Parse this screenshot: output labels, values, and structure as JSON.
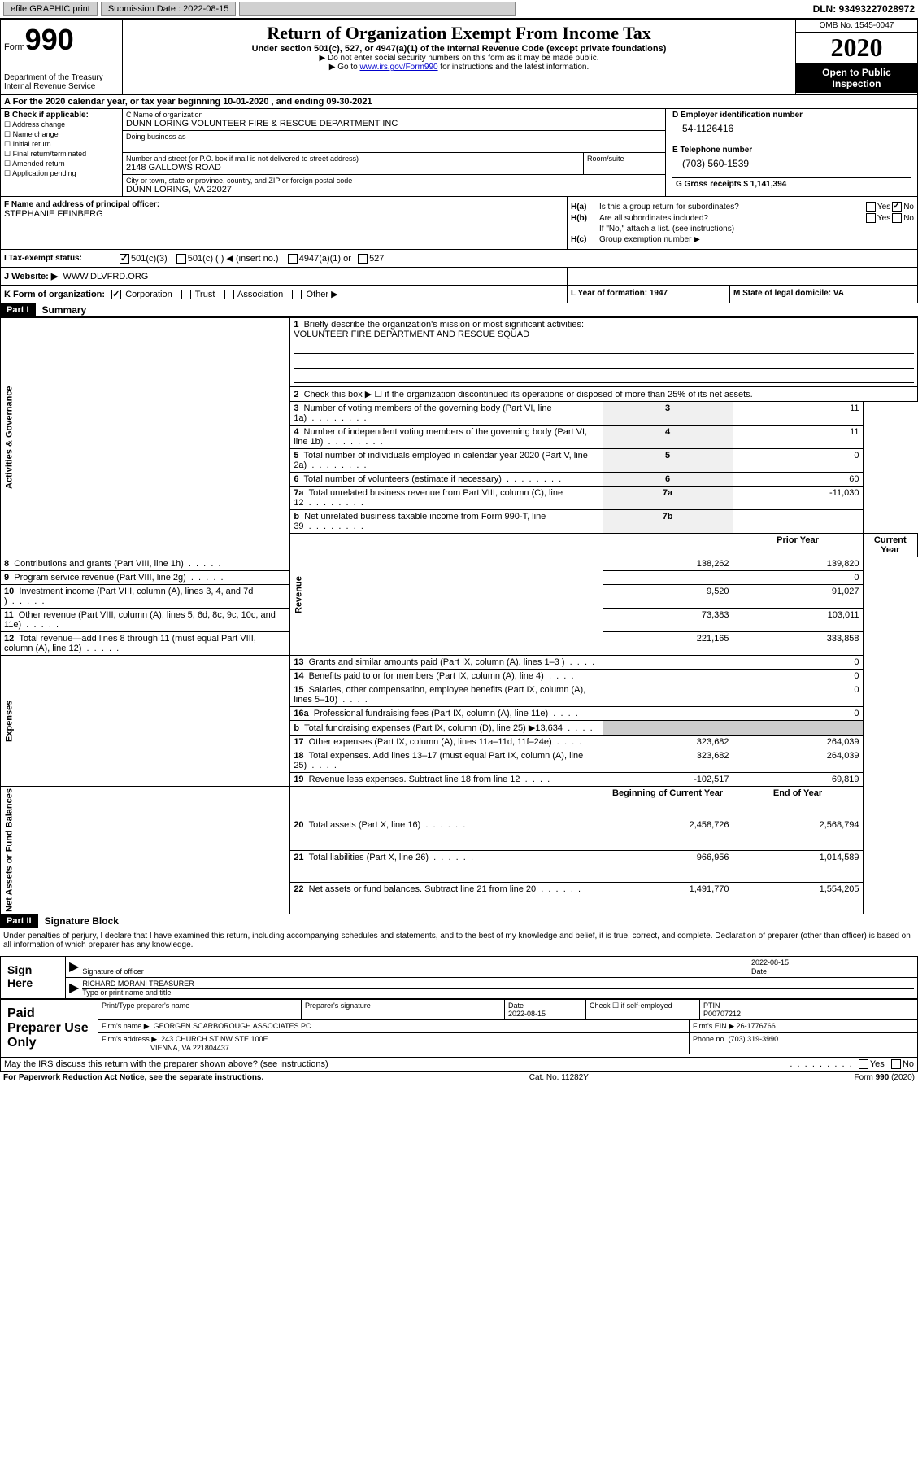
{
  "topbar": {
    "efile": "efile GRAPHIC print",
    "subdate_label": "Submission Date : 2022-08-15",
    "dln": "DLN: 93493227028972"
  },
  "header": {
    "form_label": "Form",
    "form_num": "990",
    "dept": "Department of the Treasury",
    "irs": "Internal Revenue Service",
    "title": "Return of Organization Exempt From Income Tax",
    "subtitle": "Under section 501(c), 527, or 4947(a)(1) of the Internal Revenue Code (except private foundations)",
    "note1": "▶ Do not enter social security numbers on this form as it may be made public.",
    "note2_pre": "▶ Go to ",
    "note2_link": "www.irs.gov/Form990",
    "note2_post": " for instructions and the latest information.",
    "omb": "OMB No. 1545-0047",
    "year": "2020",
    "inspect": "Open to Public Inspection"
  },
  "period": "A For the 2020 calendar year, or tax year beginning 10-01-2020   , and ending 09-30-2021",
  "section_b": {
    "label": "B Check if applicable:",
    "opts": [
      "Address change",
      "Name change",
      "Initial return",
      "Final return/terminated",
      "Amended return",
      "Application pending"
    ]
  },
  "section_c": {
    "name_label": "C Name of organization",
    "name": "DUNN LORING VOLUNTEER FIRE & RESCUE DEPARTMENT INC",
    "dba_label": "Doing business as",
    "addr_label": "Number and street (or P.O. box if mail is not delivered to street address)",
    "addr": "2148 GALLOWS ROAD",
    "room_label": "Room/suite",
    "city_label": "City or town, state or province, country, and ZIP or foreign postal code",
    "city": "DUNN LORING, VA  22027"
  },
  "section_d": {
    "label": "D Employer identification number",
    "val": "54-1126416"
  },
  "section_e": {
    "label": "E Telephone number",
    "val": "(703) 560-1539"
  },
  "section_g": {
    "label": "G Gross receipts $ 1,141,394"
  },
  "section_f": {
    "label": "F  Name and address of principal officer:",
    "val": "STEPHANIE FEINBERG"
  },
  "section_h": {
    "ha_label": "H(a)",
    "ha_text": "Is this a group return for subordinates?",
    "hb_label": "H(b)",
    "hb_text": "Are all subordinates included?",
    "hb_note": "If \"No,\" attach a list. (see instructions)",
    "hc_label": "H(c)",
    "hc_text": "Group exemption number ▶",
    "yes": "Yes",
    "no": "No"
  },
  "section_i": {
    "label": "I   Tax-exempt status:",
    "opt1": "501(c)(3)",
    "opt2": "501(c) (  ) ◀ (insert no.)",
    "opt3": "4947(a)(1) or",
    "opt4": "527"
  },
  "section_j": {
    "label": "J   Website: ▶",
    "val": "WWW.DLVFRD.ORG"
  },
  "section_k": {
    "label": "K Form of organization:",
    "opts": [
      "Corporation",
      "Trust",
      "Association",
      "Other ▶"
    ]
  },
  "section_l": {
    "label": "L Year of formation: 1947"
  },
  "section_m": {
    "label": "M State of legal domicile: VA"
  },
  "part1": {
    "header": "Part I",
    "title": "Summary",
    "line1_label": "1",
    "line1_text": "Briefly describe the organization's mission or most significant activities:",
    "line1_val": "VOLUNTEER FIRE DEPARTMENT AND RESCUE SQUAD",
    "line2_label": "2",
    "line2_text": "Check this box ▶ ☐  if the organization discontinued its operations or disposed of more than 25% of its net assets.",
    "vert_gov": "Activities & Governance",
    "vert_rev": "Revenue",
    "vert_exp": "Expenses",
    "vert_net": "Net Assets or Fund Balances",
    "gov_rows": [
      {
        "n": "3",
        "t": "Number of voting members of the governing body (Part VI, line 1a)",
        "box": "3",
        "v": "11"
      },
      {
        "n": "4",
        "t": "Number of independent voting members of the governing body (Part VI, line 1b)",
        "box": "4",
        "v": "11"
      },
      {
        "n": "5",
        "t": "Total number of individuals employed in calendar year 2020 (Part V, line 2a)",
        "box": "5",
        "v": "0"
      },
      {
        "n": "6",
        "t": "Total number of volunteers (estimate if necessary)",
        "box": "6",
        "v": "60"
      },
      {
        "n": "7a",
        "t": "Total unrelated business revenue from Part VIII, column (C), line 12",
        "box": "7a",
        "v": "-11,030"
      },
      {
        "n": "b",
        "t": "Net unrelated business taxable income from Form 990-T, line 39",
        "box": "7b",
        "v": ""
      }
    ],
    "year_cols": {
      "prior": "Prior Year",
      "current": "Current Year"
    },
    "rev_rows": [
      {
        "n": "8",
        "t": "Contributions and grants (Part VIII, line 1h)",
        "p": "138,262",
        "c": "139,820"
      },
      {
        "n": "9",
        "t": "Program service revenue (Part VIII, line 2g)",
        "p": "",
        "c": "0"
      },
      {
        "n": "10",
        "t": "Investment income (Part VIII, column (A), lines 3, 4, and 7d )",
        "p": "9,520",
        "c": "91,027"
      },
      {
        "n": "11",
        "t": "Other revenue (Part VIII, column (A), lines 5, 6d, 8c, 9c, 10c, and 11e)",
        "p": "73,383",
        "c": "103,011"
      },
      {
        "n": "12",
        "t": "Total revenue—add lines 8 through 11 (must equal Part VIII, column (A), line 12)",
        "p": "221,165",
        "c": "333,858"
      }
    ],
    "exp_rows": [
      {
        "n": "13",
        "t": "Grants and similar amounts paid (Part IX, column (A), lines 1–3 )",
        "p": "",
        "c": "0"
      },
      {
        "n": "14",
        "t": "Benefits paid to or for members (Part IX, column (A), line 4)",
        "p": "",
        "c": "0"
      },
      {
        "n": "15",
        "t": "Salaries, other compensation, employee benefits (Part IX, column (A), lines 5–10)",
        "p": "",
        "c": "0"
      },
      {
        "n": "16a",
        "t": "Professional fundraising fees (Part IX, column (A), line 11e)",
        "p": "",
        "c": "0"
      },
      {
        "n": "b",
        "t": "Total fundraising expenses (Part IX, column (D), line 25) ▶13,634",
        "p": "__SHADE__",
        "c": "__SHADE__"
      },
      {
        "n": "17",
        "t": "Other expenses (Part IX, column (A), lines 11a–11d, 11f–24e)",
        "p": "323,682",
        "c": "264,039"
      },
      {
        "n": "18",
        "t": "Total expenses. Add lines 13–17 (must equal Part IX, column (A), line 25)",
        "p": "323,682",
        "c": "264,039"
      },
      {
        "n": "19",
        "t": "Revenue less expenses. Subtract line 18 from line 12",
        "p": "-102,517",
        "c": "69,819"
      }
    ],
    "net_cols": {
      "beg": "Beginning of Current Year",
      "end": "End of Year"
    },
    "net_rows": [
      {
        "n": "20",
        "t": "Total assets (Part X, line 16)",
        "p": "2,458,726",
        "c": "2,568,794"
      },
      {
        "n": "21",
        "t": "Total liabilities (Part X, line 26)",
        "p": "966,956",
        "c": "1,014,589"
      },
      {
        "n": "22",
        "t": "Net assets or fund balances. Subtract line 21 from line 20",
        "p": "1,491,770",
        "c": "1,554,205"
      }
    ]
  },
  "part2": {
    "header": "Part II",
    "title": "Signature Block",
    "intro": "Under penalties of perjury, I declare that I have examined this return, including accompanying schedules and statements, and to the best of my knowledge and belief, it is true, correct, and complete. Declaration of preparer (other than officer) is based on all information of which preparer has any knowledge.",
    "sign_here": "Sign Here",
    "sig_officer": "Signature of officer",
    "sig_date": "2022-08-15",
    "date_label": "Date",
    "officer_name": "RICHARD MORANI TREASURER",
    "type_name": "Type or print name and title",
    "paid_prep": "Paid Preparer Use Only",
    "prep_name_label": "Print/Type preparer's name",
    "prep_sig_label": "Preparer's signature",
    "prep_date_label": "Date",
    "prep_date": "2022-08-15",
    "check_self": "Check ☐ if self-employed",
    "ptin_label": "PTIN",
    "ptin": "P00707212",
    "firm_name_label": "Firm's name    ▶",
    "firm_name": "GEORGEN SCARBOROUGH ASSOCIATES PC",
    "firm_ein_label": "Firm's EIN ▶",
    "firm_ein": "26-1776766",
    "firm_addr_label": "Firm's address ▶",
    "firm_addr1": "243 CHURCH ST NW STE 100E",
    "firm_addr2": "VIENNA, VA  221804437",
    "phone_label": "Phone no.",
    "phone": "(703) 319-3990",
    "discuss": "May the IRS discuss this return with the preparer shown above? (see instructions)"
  },
  "footer": {
    "paperwork": "For Paperwork Reduction Act Notice, see the separate instructions.",
    "catno": "Cat. No. 11282Y",
    "formyear": "Form 990 (2020)"
  }
}
